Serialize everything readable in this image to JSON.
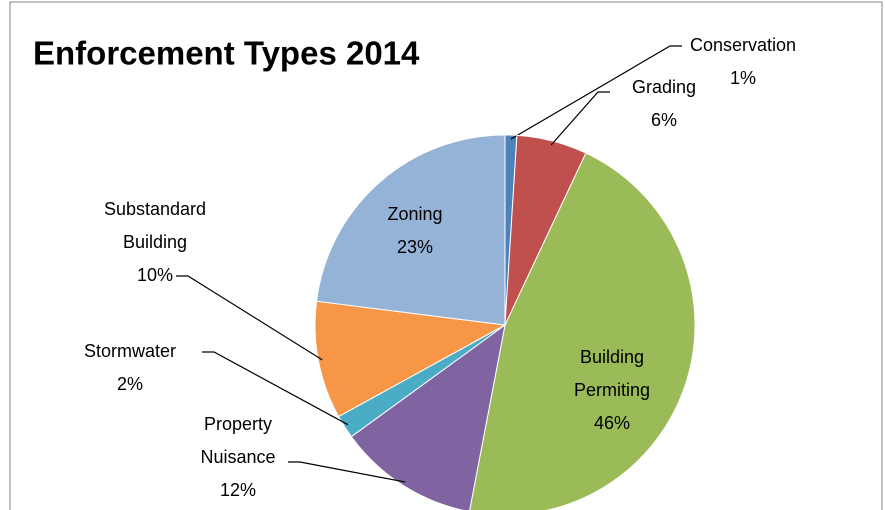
{
  "chart_data": {
    "type": "pie",
    "title": "Enforcement Types 2014",
    "categories": [
      "Conservation",
      "Grading",
      "Building Permiting",
      "Property Nuisance",
      "Stormwater",
      "Substandard Building",
      "Zoning"
    ],
    "values": [
      1,
      6,
      46,
      12,
      2,
      10,
      23
    ],
    "value_labels": [
      "1%",
      "6%",
      "46%",
      "12%",
      "2%",
      "10%",
      "23%"
    ],
    "colors": [
      "#4f81bd",
      "#c0504d",
      "#9bbb59",
      "#8064a2",
      "#4bacc6",
      "#f79646",
      "#95b3d7"
    ]
  }
}
